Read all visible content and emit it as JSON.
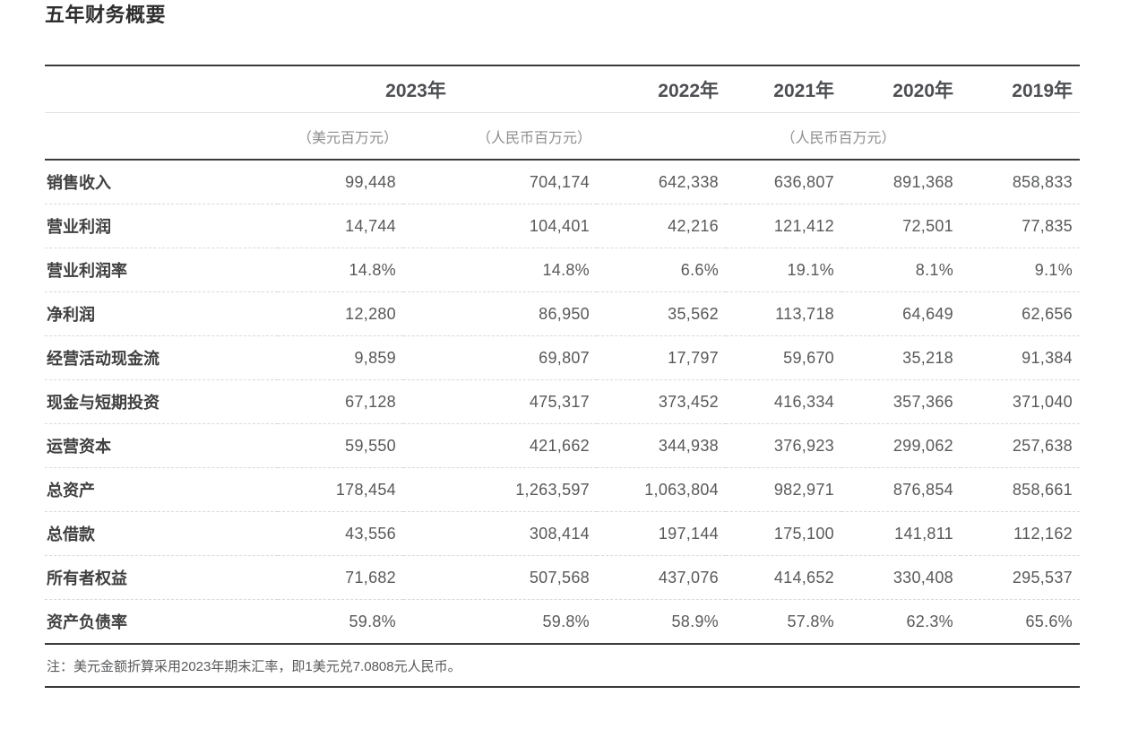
{
  "page": {
    "title": "五年财务概要",
    "note": "注：美元金额折算采用2023年期末汇率，即1美元兑7.0808元人民币。"
  },
  "table": {
    "year_headers": [
      "2023年",
      "2022年",
      "2021年",
      "2020年",
      "2019年"
    ],
    "unit_headers": [
      "（美元百万元）",
      "（人民币百万元）",
      "（人民币百万元）"
    ],
    "rows": [
      {
        "label": "销售收入",
        "values": [
          "99,448",
          "704,174",
          "642,338",
          "636,807",
          "891,368",
          "858,833"
        ]
      },
      {
        "label": "营业利润",
        "values": [
          "14,744",
          "104,401",
          "42,216",
          "121,412",
          "72,501",
          "77,835"
        ]
      },
      {
        "label": "营业利润率",
        "values": [
          "14.8%",
          "14.8%",
          "6.6%",
          "19.1%",
          "8.1%",
          "9.1%"
        ]
      },
      {
        "label": "净利润",
        "values": [
          "12,280",
          "86,950",
          "35,562",
          "113,718",
          "64,649",
          "62,656"
        ]
      },
      {
        "label": "经营活动现金流",
        "values": [
          "9,859",
          "69,807",
          "17,797",
          "59,670",
          "35,218",
          "91,384"
        ]
      },
      {
        "label": "现金与短期投资",
        "values": [
          "67,128",
          "475,317",
          "373,452",
          "416,334",
          "357,366",
          "371,040"
        ]
      },
      {
        "label": "运营资本",
        "values": [
          "59,550",
          "421,662",
          "344,938",
          "376,923",
          "299,062",
          "257,638"
        ]
      },
      {
        "label": "总资产",
        "values": [
          "178,454",
          "1,263,597",
          "1,063,804",
          "982,971",
          "876,854",
          "858,661"
        ]
      },
      {
        "label": "总借款",
        "values": [
          "43,556",
          "308,414",
          "197,144",
          "175,100",
          "141,811",
          "112,162"
        ]
      },
      {
        "label": "所有者权益",
        "values": [
          "71,682",
          "507,568",
          "437,076",
          "414,652",
          "330,408",
          "295,537"
        ]
      },
      {
        "label": "资产负债率",
        "values": [
          "59.8%",
          "59.8%",
          "58.9%",
          "57.8%",
          "62.3%",
          "65.6%"
        ]
      }
    ]
  },
  "colors": {
    "title_text": "#2e2e2e",
    "year_header_text": "#4d4f53",
    "unit_header_text": "#8e8e8e",
    "row_label_text": "#404040",
    "value_text": "#58595b",
    "solid_border": "#3b3b3b",
    "light_border": "#e4e4e4",
    "dashed_separator": "#d9d9d9",
    "background": "#ffffff"
  }
}
